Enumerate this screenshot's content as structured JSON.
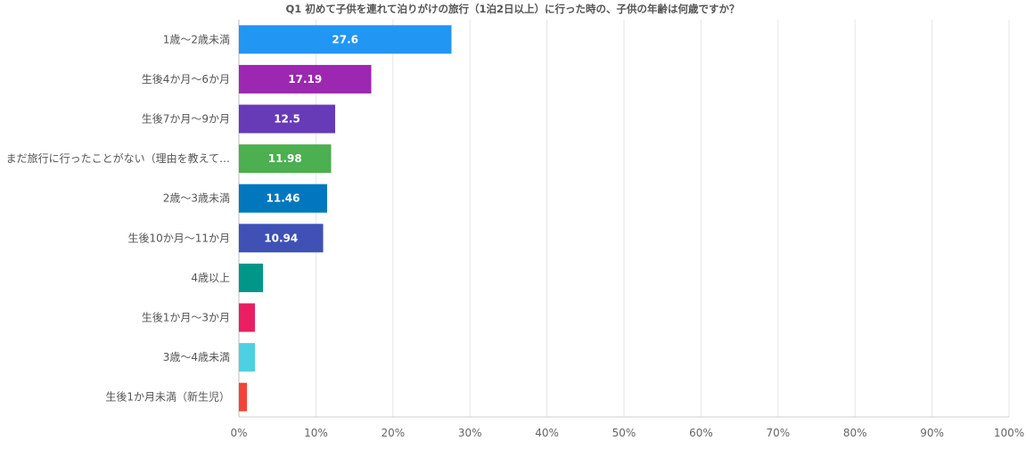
{
  "chart_data": {
    "type": "bar",
    "orientation": "horizontal",
    "title": "Q1 初めて子供を連れて泊りがけの旅行（1泊2日以上）に行った時の、子供の年齢は何歳ですか？",
    "xlabel": "",
    "ylabel": "",
    "xlim": [
      0,
      100
    ],
    "x_ticks": [
      "0%",
      "10%",
      "20%",
      "30%",
      "40%",
      "50%",
      "60%",
      "70%",
      "80%",
      "90%",
      "100%"
    ],
    "grid": true,
    "legend": "none",
    "categories": [
      "1歳～2歳未満",
      "生後4か月～6か月",
      "生後7か月～9か月",
      "まだ旅行に行ったことがない（理由を教えて…",
      "2歳～3歳未満",
      "生後10か月～11か月",
      "4歳以上",
      "生後1か月～3か月",
      "3歳～4歳未満",
      "生後1か月未満（新生児）"
    ],
    "values": [
      27.6,
      17.19,
      12.5,
      11.98,
      11.46,
      10.94,
      3.13,
      2.08,
      2.08,
      1.04
    ],
    "data_labels": [
      "27.6",
      "17.19",
      "12.5",
      "11.98",
      "11.46",
      "10.94",
      "",
      "",
      "",
      ""
    ],
    "colors": [
      "#2196F3",
      "#9C27B0",
      "#673AB7",
      "#4CAF50",
      "#0277BD",
      "#3F51B5",
      "#009688",
      "#E91E63",
      "#4DD0E1",
      "#F44336"
    ]
  }
}
